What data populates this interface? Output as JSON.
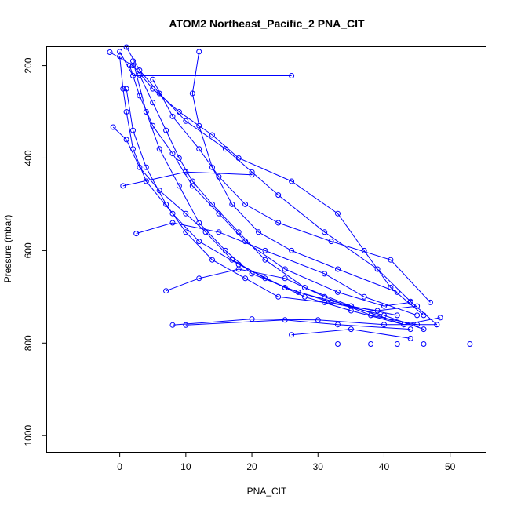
{
  "chart_data": {
    "type": "scatter",
    "title": "ATOM2 Northeast_Pacific_2 PNA_CIT",
    "xlabel": "PNA_CIT",
    "ylabel": "Pressure (mbar)",
    "xlim": [
      -11,
      55.5
    ],
    "ylim": [
      1037,
      160
    ],
    "y_reversed": true,
    "grid": false,
    "legend": "none",
    "x_ticks": [
      0,
      10,
      20,
      30,
      40,
      50
    ],
    "y_ticks": [
      200,
      400,
      600,
      800,
      1000
    ],
    "series": [
      {
        "color": "#0000ff",
        "profiles": [
          [
            [
              -1.5,
              171
            ],
            [
              2,
              200
            ],
            [
              5,
              250
            ],
            [
              9,
              300
            ],
            [
              14,
              350
            ],
            [
              18,
              400
            ],
            [
              26,
              450
            ],
            [
              33,
              520
            ],
            [
              37,
              600
            ],
            [
              41,
              680
            ],
            [
              46,
              740
            ]
          ],
          [
            [
              1,
              160
            ],
            [
              3,
              210
            ],
            [
              6,
              260
            ],
            [
              10,
              320
            ],
            [
              16,
              380
            ],
            [
              20,
              430
            ],
            [
              24,
              480
            ],
            [
              31,
              560
            ],
            [
              39,
              640
            ],
            [
              44,
              710
            ],
            [
              48,
              760
            ]
          ],
          [
            [
              0,
              170
            ],
            [
              2,
              222
            ],
            [
              26,
              222
            ]
          ],
          [
            [
              0,
              180
            ],
            [
              0.5,
              250
            ],
            [
              1,
              300
            ],
            [
              2,
              380
            ],
            [
              4,
              450
            ],
            [
              8,
              520
            ],
            [
              12,
              580
            ],
            [
              18,
              630
            ],
            [
              25,
              680
            ],
            [
              32,
              712
            ],
            [
              40,
              740
            ],
            [
              46,
              770
            ]
          ],
          [
            [
              -1,
              333
            ],
            [
              1,
              360
            ],
            [
              3,
              420
            ],
            [
              6,
              470
            ],
            [
              10,
              520
            ],
            [
              13,
              560
            ],
            [
              17,
              620
            ],
            [
              22,
              660
            ],
            [
              28,
              700
            ],
            [
              35,
              730
            ],
            [
              43,
              760
            ]
          ],
          [
            [
              3,
              220
            ],
            [
              5,
              280
            ],
            [
              7,
              340
            ],
            [
              9,
              400
            ],
            [
              11,
              450
            ],
            [
              14,
              500
            ],
            [
              18,
              560
            ],
            [
              22,
              620
            ],
            [
              28,
              680
            ],
            [
              35,
              720
            ],
            [
              43,
              760
            ],
            [
              48.5,
              745
            ]
          ],
          [
            [
              0.5,
              460
            ],
            [
              10,
              430
            ],
            [
              20,
              436
            ]
          ],
          [
            [
              2.5,
              563
            ],
            [
              8,
              540
            ],
            [
              15,
              560
            ],
            [
              22,
              600
            ],
            [
              31,
              650
            ],
            [
              37,
              700
            ],
            [
              45,
              740
            ]
          ],
          [
            [
              7,
              687
            ],
            [
              12,
              660
            ],
            [
              18,
              640
            ],
            [
              25,
              660
            ],
            [
              31,
              700
            ],
            [
              38,
              740
            ],
            [
              45,
              760
            ]
          ],
          [
            [
              8,
              761
            ],
            [
              20,
              748
            ],
            [
              30,
              750
            ],
            [
              40,
              760
            ],
            [
              48,
              760
            ]
          ],
          [
            [
              10,
              761
            ],
            [
              25,
              750
            ],
            [
              33,
              760
            ],
            [
              44,
              770
            ]
          ],
          [
            [
              26,
              782
            ],
            [
              35,
              770
            ],
            [
              44,
              790
            ]
          ],
          [
            [
              33,
              802
            ],
            [
              38,
              802
            ],
            [
              42,
              802
            ],
            [
              46,
              802
            ],
            [
              53,
              802
            ]
          ],
          [
            [
              12,
              170
            ],
            [
              11,
              260
            ],
            [
              12,
              330
            ],
            [
              14,
              420
            ],
            [
              17,
              500
            ],
            [
              21,
              560
            ],
            [
              26,
              600
            ],
            [
              33,
              640
            ],
            [
              42,
              690
            ]
          ],
          [
            [
              2,
              190
            ],
            [
              4,
              300
            ],
            [
              6,
              380
            ],
            [
              9,
              460
            ],
            [
              12,
              540
            ],
            [
              16,
              600
            ],
            [
              20,
              650
            ],
            [
              27,
              690
            ],
            [
              35,
              720
            ],
            [
              42,
              740
            ]
          ],
          [
            [
              1,
              250
            ],
            [
              2,
              340
            ],
            [
              4,
              420
            ],
            [
              7,
              500
            ],
            [
              10,
              560
            ],
            [
              14,
              620
            ],
            [
              19,
              660
            ],
            [
              24,
              700
            ],
            [
              31,
              712
            ],
            [
              39,
              730
            ],
            [
              45,
              720
            ]
          ],
          [
            [
              5,
              230
            ],
            [
              8,
              310
            ],
            [
              12,
              380
            ],
            [
              15,
              440
            ],
            [
              19,
              500
            ],
            [
              24,
              540
            ],
            [
              32,
              580
            ],
            [
              41,
              620
            ],
            [
              47,
              712
            ]
          ],
          [
            [
              1.5,
              200
            ],
            [
              3,
              265
            ],
            [
              5,
              330
            ],
            [
              8,
              390
            ],
            [
              11,
              460
            ],
            [
              15,
              520
            ],
            [
              19,
              580
            ],
            [
              25,
              640
            ],
            [
              33,
              690
            ],
            [
              40,
              720
            ],
            [
              44,
              712
            ]
          ]
        ]
      }
    ]
  }
}
